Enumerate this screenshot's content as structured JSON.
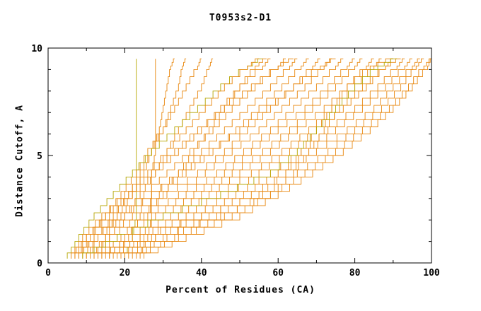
{
  "chart_data": {
    "type": "line",
    "title": "T0953s2-D1",
    "xlabel": "Percent of Residues (CA)",
    "ylabel": "Distance Cutoff, A",
    "xlim": [
      0,
      100
    ],
    "ylim": [
      0,
      10
    ],
    "grid": false,
    "legend": "none",
    "x_ticks": [
      0,
      20,
      40,
      60,
      80,
      100
    ],
    "x_tick_labels": [
      "0",
      "20",
      "40",
      "60",
      "80",
      "100"
    ],
    "x_minor_ticks": [
      10,
      30,
      50,
      70,
      90
    ],
    "y_ticks": [
      0,
      5,
      10
    ],
    "y_tick_labels": [
      "0",
      "5",
      "10"
    ],
    "y_minor_ticks": [
      1,
      2,
      3,
      4,
      6,
      7,
      8,
      9
    ],
    "axis_color": "#000000",
    "line_color": "#e8870e",
    "alt_line_color": "#b5a500",
    "y_levels": [
      0.2,
      1,
      2,
      3,
      4,
      5,
      6,
      7,
      8,
      9,
      9.5
    ],
    "series": [
      {
        "c": "alt",
        "x": [
          20,
          22,
          23,
          23,
          23,
          23,
          23,
          23,
          23,
          23,
          23
        ]
      },
      {
        "x": [
          24,
          26,
          27,
          27,
          27,
          28,
          28,
          28,
          28,
          28,
          28
        ]
      },
      {
        "x": [
          12,
          15,
          18,
          22,
          25,
          27,
          29,
          30,
          31,
          32,
          33
        ]
      },
      {
        "x": [
          10,
          13,
          17,
          21,
          24,
          27,
          30,
          32,
          34,
          35,
          36
        ]
      },
      {
        "x": [
          8,
          11,
          15,
          19,
          23,
          26,
          30,
          33,
          36,
          39,
          40
        ]
      },
      {
        "x": [
          13,
          16,
          20,
          24,
          28,
          31,
          34,
          37,
          40,
          42,
          43
        ]
      },
      {
        "c": "alt",
        "x": [
          5,
          8,
          12,
          17,
          22,
          27,
          33,
          39,
          45,
          52,
          56
        ]
      },
      {
        "x": [
          6,
          10,
          15,
          21,
          27,
          33,
          39,
          46,
          53,
          60,
          64
        ]
      },
      {
        "x": [
          6,
          9,
          14,
          20,
          26,
          31,
          36,
          41,
          46,
          52,
          55
        ]
      },
      {
        "x": [
          7,
          10,
          16,
          22,
          28,
          34,
          40,
          45,
          50,
          56,
          58
        ]
      },
      {
        "x": [
          8,
          12,
          18,
          25,
          31,
          37,
          43,
          48,
          54,
          60,
          62
        ]
      },
      {
        "x": [
          9,
          13,
          20,
          27,
          34,
          40,
          46,
          52,
          58,
          63,
          65
        ]
      },
      {
        "x": [
          10,
          15,
          22,
          29,
          36,
          43,
          49,
          55,
          61,
          66,
          68
        ]
      },
      {
        "x": [
          11,
          16,
          24,
          31,
          39,
          46,
          52,
          58,
          64,
          69,
          71
        ]
      },
      {
        "x": [
          12,
          18,
          26,
          34,
          41,
          48,
          55,
          61,
          67,
          72,
          74
        ]
      },
      {
        "x": [
          13,
          19,
          28,
          36,
          44,
          51,
          58,
          64,
          70,
          75,
          77
        ]
      },
      {
        "x": [
          14,
          21,
          30,
          38,
          46,
          53,
          60,
          67,
          73,
          78,
          80
        ]
      },
      {
        "x": [
          15,
          22,
          32,
          40,
          48,
          56,
          63,
          69,
          75,
          80,
          82
        ]
      },
      {
        "x": [
          16,
          24,
          34,
          42,
          50,
          58,
          65,
          72,
          78,
          83,
          85
        ]
      },
      {
        "x": [
          17,
          25,
          36,
          44,
          53,
          61,
          68,
          74,
          80,
          85,
          87
        ]
      },
      {
        "x": [
          18,
          27,
          38,
          47,
          55,
          63,
          70,
          77,
          83,
          88,
          90
        ]
      },
      {
        "x": [
          19,
          28,
          40,
          49,
          58,
          66,
          73,
          80,
          86,
          91,
          93
        ]
      },
      {
        "x": [
          20,
          30,
          42,
          51,
          60,
          68,
          75,
          82,
          88,
          93,
          95
        ]
      },
      {
        "x": [
          21,
          31,
          44,
          53,
          62,
          70,
          78,
          85,
          90,
          95,
          97
        ]
      },
      {
        "x": [
          22,
          33,
          46,
          56,
          65,
          73,
          80,
          87,
          92,
          96,
          98
        ]
      },
      {
        "x": [
          23,
          34,
          48,
          58,
          67,
          75,
          82,
          89,
          94,
          98,
          100
        ]
      },
      {
        "x": [
          25,
          36,
          50,
          60,
          69,
          77,
          84,
          90,
          95,
          99,
          100
        ]
      },
      {
        "x": [
          12,
          24,
          40,
          55,
          62,
          66,
          70,
          74,
          78,
          84,
          90
        ]
      },
      {
        "x": [
          14,
          28,
          45,
          58,
          64,
          68,
          72,
          76,
          82,
          88,
          92
        ]
      },
      {
        "c": "alt",
        "x": [
          9,
          18,
          30,
          45,
          58,
          65,
          70,
          75,
          80,
          86,
          91
        ]
      },
      {
        "x": [
          7,
          12,
          19,
          27,
          35,
          42,
          50,
          57,
          64,
          71,
          75
        ]
      },
      {
        "x": [
          16,
          20,
          25,
          30,
          34,
          38,
          42,
          46,
          50,
          54,
          57
        ]
      }
    ]
  }
}
